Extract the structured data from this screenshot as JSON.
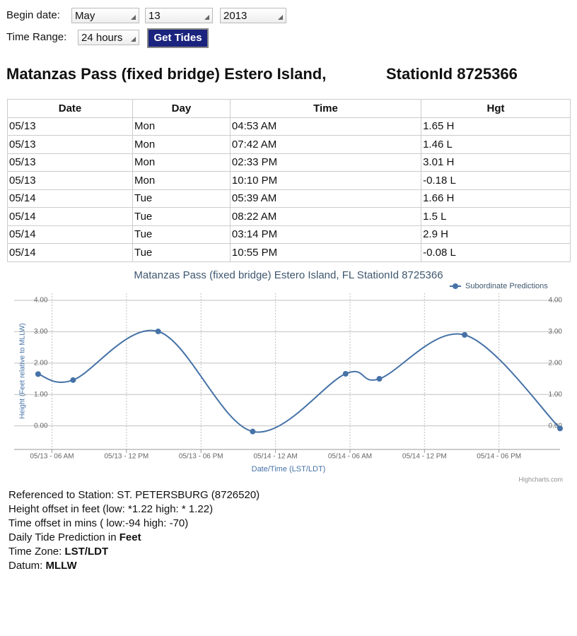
{
  "form": {
    "begin_label": "Begin date:",
    "month": "May",
    "day": "13",
    "year": "2013",
    "range_label": "Time Range:",
    "range": "24 hours",
    "button": "Get Tides"
  },
  "heading": {
    "station_name": "Matanzas Pass (fixed bridge) Estero Island,",
    "station_id": "StationId 8725366"
  },
  "table": {
    "columns": [
      "Date",
      "Day",
      "Time",
      "Hgt"
    ],
    "rows": [
      [
        "05/13",
        "Mon",
        "04:53 AM",
        "1.65 H"
      ],
      [
        "05/13",
        "Mon",
        "07:42 AM",
        "1.46 L"
      ],
      [
        "05/13",
        "Mon",
        "02:33 PM",
        "3.01 H"
      ],
      [
        "05/13",
        "Mon",
        "10:10 PM",
        "-0.18 L"
      ],
      [
        "05/14",
        "Tue",
        "05:39 AM",
        "1.66 H"
      ],
      [
        "05/14",
        "Tue",
        "08:22 AM",
        "1.5 L"
      ],
      [
        "05/14",
        "Tue",
        "03:14 PM",
        "2.9 H"
      ],
      [
        "05/14",
        "Tue",
        "10:55 PM",
        "-0.08 L"
      ]
    ]
  },
  "chart_data": {
    "type": "line",
    "title": "Matanzas Pass (fixed bridge) Estero Island, FL StationId 8725366",
    "x_label": "Date/Time (LST/LDT)",
    "y_label": "Height (Feet relative to MLLW)",
    "credits": "Highcharts.com",
    "legend": "top-right",
    "grid": true,
    "x": [
      "05/13 04:53",
      "05/13 07:42",
      "05/13 14:33",
      "05/13 22:10",
      "05/14 05:39",
      "05/14 08:22",
      "05/14 15:14",
      "05/14 22:55"
    ],
    "series": [
      {
        "name": "Subordinate Predictions",
        "color": "#4572a7",
        "values": [
          1.65,
          1.46,
          3.01,
          -0.18,
          1.66,
          1.5,
          2.9,
          -0.08
        ]
      }
    ],
    "xlim": [
      "05/13 03:45",
      "05/14 22:55"
    ],
    "xticks": [
      {
        "value": "05/13 06:00",
        "label": "05/13 - 06 AM"
      },
      {
        "value": "05/13 12:00",
        "label": "05/13 - 12 PM"
      },
      {
        "value": "05/13 18:00",
        "label": "05/13 - 06 PM"
      },
      {
        "value": "05/14 00:00",
        "label": "05/14 - 12 AM"
      },
      {
        "value": "05/14 06:00",
        "label": "05/14 - 06 AM"
      },
      {
        "value": "05/14 12:00",
        "label": "05/14 - 12 PM"
      },
      {
        "value": "05/14 18:00",
        "label": "05/14 - 06 PM"
      }
    ],
    "ylim": [
      -0.75,
      4
    ],
    "yticks": [
      {
        "value": 0,
        "label": "0.00"
      },
      {
        "value": 1,
        "label": "1.00"
      },
      {
        "value": 2,
        "label": "2.00"
      },
      {
        "value": 3,
        "label": "3.00"
      },
      {
        "value": 4,
        "label": "4.00"
      }
    ],
    "y2lim": [
      -0.75,
      4
    ],
    "y2ticks": [
      {
        "value": 0,
        "label": "0.00"
      },
      {
        "value": 1,
        "label": "1.00"
      },
      {
        "value": 2,
        "label": "2.00"
      },
      {
        "value": 3,
        "label": "3.00"
      },
      {
        "value": 4,
        "label": "4.00"
      }
    ]
  },
  "footer": {
    "lines": [
      {
        "text": "Referenced to Station: ST. PETERSBURG (8726520)"
      },
      {
        "text": "Height offset in feet (low: *1.22 high: * 1.22)"
      },
      {
        "text": "Time offset in mins ( low:-94 high: -70)"
      },
      {
        "text": "Daily Tide Prediction in ",
        "bold": "Feet"
      },
      {
        "text": "Time Zone: ",
        "bold": "LST/LDT"
      },
      {
        "text": "Datum: ",
        "bold": "MLLW"
      }
    ]
  }
}
